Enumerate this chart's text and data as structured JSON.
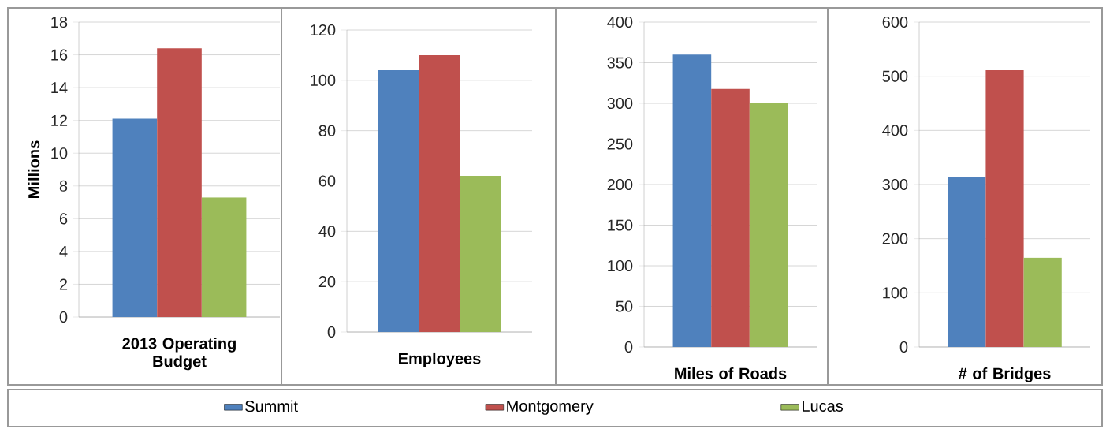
{
  "chart_data": [
    {
      "type": "bar",
      "categories": [
        "2013 Operating Budget"
      ],
      "ylabel": "Millions",
      "ylim": [
        0,
        18
      ],
      "yticks": [
        0,
        2,
        4,
        6,
        8,
        10,
        12,
        14,
        16,
        18
      ],
      "grid": "y",
      "legend": "bottom",
      "series": [
        {
          "name": "Summit",
          "color": "#4f81bd",
          "values": [
            12.1
          ]
        },
        {
          "name": "Montgomery",
          "color": "#c0504d",
          "values": [
            16.4
          ]
        },
        {
          "name": "Lucas",
          "color": "#9bbb59",
          "values": [
            7.3
          ]
        }
      ]
    },
    {
      "type": "bar",
      "categories": [
        "Employees"
      ],
      "ylim": [
        0,
        120
      ],
      "yticks": [
        0,
        20,
        40,
        60,
        80,
        100,
        120
      ],
      "grid": "y",
      "series": [
        {
          "color": "#4f81bd",
          "values": [
            104
          ]
        },
        {
          "color": "#c0504d",
          "values": [
            110
          ]
        },
        {
          "color": "#9bbb59",
          "values": [
            62
          ]
        }
      ]
    },
    {
      "type": "bar",
      "categories": [
        "Miles of Roads"
      ],
      "ylim": [
        0,
        400
      ],
      "yticks": [
        0,
        50,
        100,
        150,
        200,
        250,
        300,
        350,
        400
      ],
      "grid": "y",
      "series": [
        {
          "color": "#4f81bd",
          "values": [
            360
          ]
        },
        {
          "color": "#c0504d",
          "values": [
            318
          ]
        },
        {
          "color": "#9bbb59",
          "values": [
            300
          ]
        }
      ]
    },
    {
      "type": "bar",
      "categories": [
        "# of Bridges"
      ],
      "ylim": [
        0,
        600
      ],
      "yticks": [
        0,
        100,
        200,
        300,
        400,
        500,
        600
      ],
      "grid": "y",
      "series": [
        {
          "color": "#4f81bd",
          "values": [
            314
          ]
        },
        {
          "color": "#c0504d",
          "values": [
            511
          ]
        },
        {
          "color": "#9bbb59",
          "values": [
            165
          ]
        }
      ]
    }
  ]
}
